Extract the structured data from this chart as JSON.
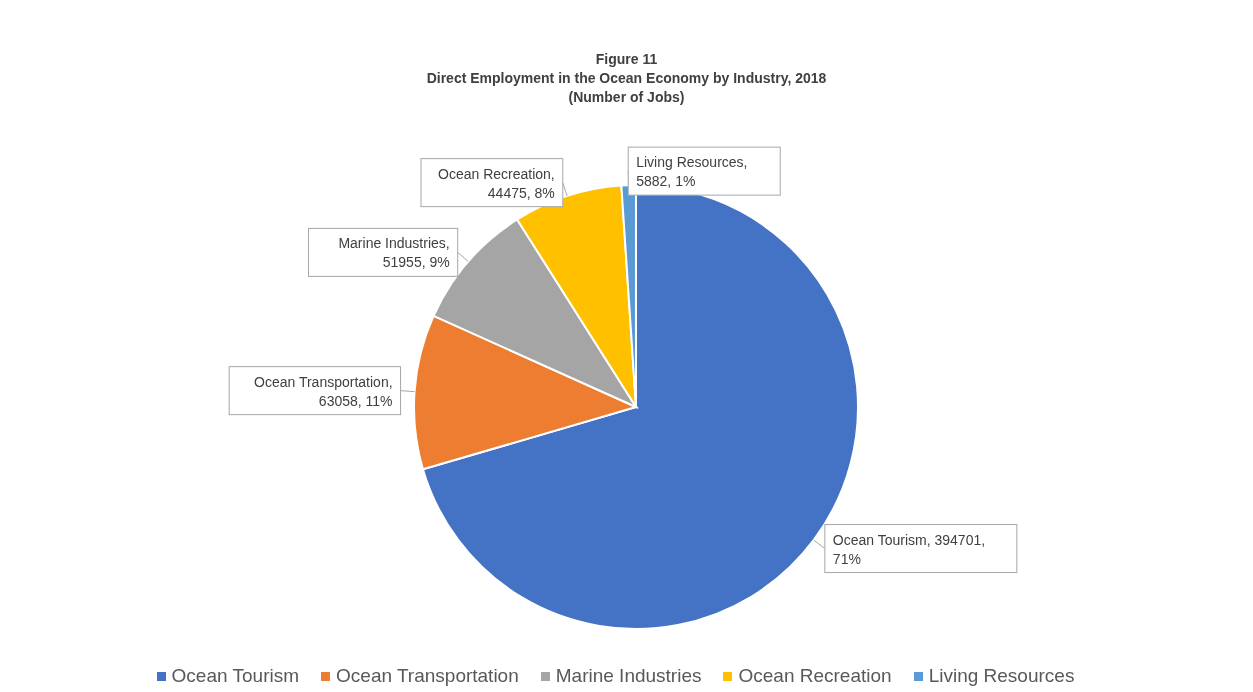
{
  "chart_data": {
    "type": "pie",
    "title": "Figure 11",
    "subtitle": "Direct Employment in the Ocean Economy by Industry, 2018\n(Number of Jobs)",
    "categories": [
      "Ocean Tourism",
      "Ocean Transportation",
      "Marine Industries",
      "Ocean Recreation",
      "Living Resources"
    ],
    "values": [
      394701,
      63058,
      51955,
      44475,
      5882
    ],
    "colors": [
      "#4472c4",
      "#ed7d31",
      "#a5a5a5",
      "#ffc000",
      "#5b9bd5"
    ],
    "value_labels": [
      "Ocean Tourism, 394701, 71%",
      "Ocean Transportation, 63058, 11%",
      "Marine Industries, 51955, 9%",
      "Ocean Recreation, 44475, 8%",
      "Living Resources, 5882, 1%"
    ],
    "legend": "bottom"
  }
}
